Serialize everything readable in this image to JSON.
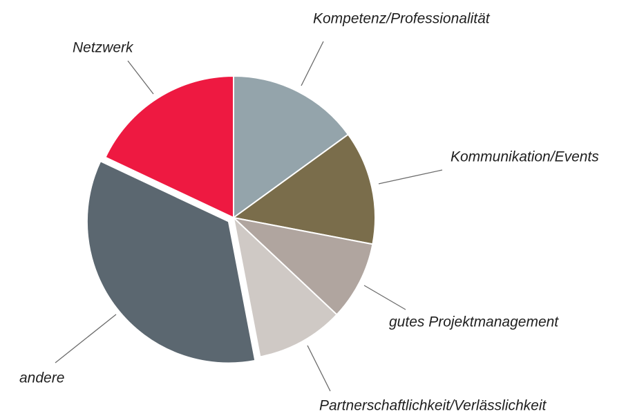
{
  "chart_data": {
    "type": "pie",
    "categories": [
      "Kompetenz/Professionalität",
      "Kommunikation/Events",
      "gutes Projektmanagement",
      "Partnerschaftlichkeit/Verlässlichkeit",
      "andere",
      "Netzwerk"
    ],
    "values": [
      15,
      13,
      9,
      10,
      35,
      18
    ],
    "colors": [
      "#94a4ab",
      "#7a6d4b",
      "#b0a59f",
      "#cfc9c5",
      "#5b6770",
      "#ee1941"
    ],
    "exploded": [
      false,
      false,
      false,
      false,
      true,
      false
    ]
  }
}
